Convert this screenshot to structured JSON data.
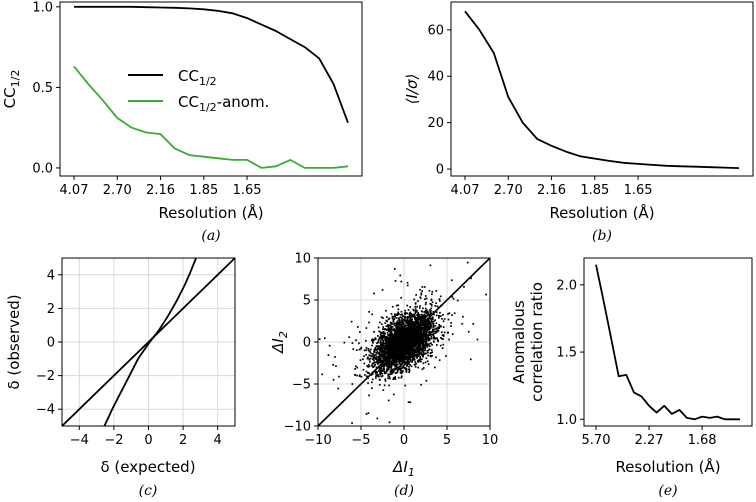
{
  "chart_data": [
    {
      "id": "a",
      "type": "line",
      "caption": "(a)",
      "xlabel": "Resolution (Å)",
      "ylabel_base": "CC",
      "ylabel_sub": "1/2",
      "x_ticks": [
        "4.07",
        "2.70",
        "2.16",
        "1.85",
        "1.65"
      ],
      "y_ticks": [
        "0.0",
        "0.5",
        "1.0"
      ],
      "ylim": [
        -0.05,
        1.03
      ],
      "xlim": [
        0,
        19
      ],
      "tick_positions": [
        0,
        3,
        6,
        9,
        12
      ],
      "grid": false,
      "legend_placement": "center",
      "series": [
        {
          "name": "CC",
          "name_sub": "1/2",
          "color": "#000000",
          "x": [
            0,
            1,
            2,
            3,
            4,
            5,
            6,
            7,
            8,
            9,
            10,
            11,
            12,
            13,
            14,
            15,
            16,
            17,
            18,
            19
          ],
          "values": [
            1.0,
            1.0,
            1.0,
            1.0,
            1.0,
            0.998,
            0.996,
            0.994,
            0.99,
            0.985,
            0.975,
            0.96,
            0.93,
            0.89,
            0.85,
            0.8,
            0.75,
            0.68,
            0.52,
            0.28
          ]
        },
        {
          "name": "CC",
          "name_sub": "1/2",
          "name_suffix": "-anom.",
          "color": "#3aaa35",
          "x": [
            0,
            1,
            2,
            3,
            4,
            5,
            6,
            7,
            8,
            9,
            10,
            11,
            12,
            13,
            14,
            15,
            16,
            17,
            18,
            19
          ],
          "values": [
            0.63,
            0.52,
            0.42,
            0.31,
            0.25,
            0.22,
            0.21,
            0.12,
            0.08,
            0.07,
            0.06,
            0.05,
            0.05,
            0.0,
            0.01,
            0.05,
            0.0,
            0.0,
            0.0,
            0.01
          ]
        }
      ]
    },
    {
      "id": "b",
      "type": "line",
      "caption": "(b)",
      "xlabel": "Resolution (Å)",
      "ylabel": "⟨I/σ⟩",
      "x_ticks": [
        "4.07",
        "2.70",
        "2.16",
        "1.85",
        "1.65"
      ],
      "y_ticks": [
        "0",
        "20",
        "40",
        "60"
      ],
      "ylim": [
        -3,
        72
      ],
      "xlim": [
        0,
        19
      ],
      "tick_positions": [
        0,
        3,
        6,
        9,
        12
      ],
      "grid": false,
      "series": [
        {
          "name": "I/sigma",
          "color": "#000000",
          "x": [
            0,
            1,
            2,
            3,
            4,
            5,
            6,
            7,
            8,
            9,
            10,
            11,
            12,
            13,
            14,
            15,
            16,
            17,
            18,
            19
          ],
          "values": [
            68,
            60,
            50,
            31,
            20,
            13,
            10,
            7.5,
            5.5,
            4.5,
            3.5,
            2.7,
            2.2,
            1.8,
            1.4,
            1.2,
            1.0,
            0.8,
            0.6,
            0.4
          ]
        }
      ]
    },
    {
      "id": "c",
      "type": "line",
      "caption": "(c)",
      "xlabel": "δ (expected)",
      "ylabel": "δ (observed)",
      "x_ticks": [
        "−4",
        "−2",
        "0",
        "2",
        "4"
      ],
      "y_ticks": [
        "−4",
        "−2",
        "0",
        "2",
        "4"
      ],
      "tick_values": [
        -4,
        -2,
        0,
        2,
        4
      ],
      "xlim": [
        -5,
        5
      ],
      "ylim": [
        -5,
        5
      ],
      "grid": true,
      "series": [
        {
          "name": "normal probability",
          "color": "#000000",
          "x": [
            -2.55,
            -2.1,
            -1.6,
            -1.1,
            -0.6,
            0.0,
            0.6,
            1.1,
            1.6,
            2.1,
            2.4,
            2.75
          ],
          "values": [
            -5,
            -4,
            -3,
            -2,
            -1,
            -0.1,
            0.7,
            1.5,
            2.4,
            3.4,
            4.1,
            5
          ]
        },
        {
          "name": "identity",
          "color": "#000000",
          "x": [
            -5,
            5
          ],
          "values": [
            -5,
            5
          ]
        }
      ]
    },
    {
      "id": "d",
      "type": "scatter",
      "caption": "(d)",
      "xlabel_base": "ΔI",
      "xlabel_sub": "1",
      "ylabel_base": "ΔI",
      "ylabel_sub": "2",
      "x_ticks": [
        "−10",
        "−5",
        "0",
        "5",
        "10"
      ],
      "y_ticks": [
        "−10",
        "−5",
        "0",
        "5",
        "10"
      ],
      "tick_values": [
        -10,
        -5,
        0,
        5,
        10
      ],
      "xlim": [
        -10,
        10
      ],
      "ylim": [
        -10,
        10
      ],
      "grid": true,
      "n_points": 3500,
      "correlation": 0.5,
      "spread": 1.65,
      "identity_line": true
    },
    {
      "id": "e",
      "type": "line",
      "caption": "(e)",
      "xlabel": "Resolution (Å)",
      "ylabel_line1": "Anomalous",
      "ylabel_line2": "correlation ratio",
      "x_ticks": [
        "5.70",
        "2.27",
        "1.68"
      ],
      "y_ticks": [
        "1.0",
        "1.5",
        "2.0"
      ],
      "tick_values": [
        1.0,
        1.5,
        2.0
      ],
      "tick_positions": [
        0,
        7,
        14
      ],
      "xlim": [
        0,
        19
      ],
      "ylim": [
        0.95,
        2.2
      ],
      "grid": false,
      "series": [
        {
          "name": "anomalous correlation ratio",
          "color": "#000000",
          "x": [
            0,
            1,
            2,
            3,
            4,
            5,
            6,
            7,
            8,
            9,
            10,
            11,
            12,
            13,
            14,
            15,
            16,
            17,
            18,
            19
          ],
          "values": [
            2.15,
            1.88,
            1.6,
            1.32,
            1.33,
            1.2,
            1.17,
            1.1,
            1.05,
            1.1,
            1.04,
            1.07,
            1.01,
            1.0,
            1.02,
            1.01,
            1.02,
            1.0,
            1.0,
            1.0
          ]
        }
      ]
    }
  ]
}
